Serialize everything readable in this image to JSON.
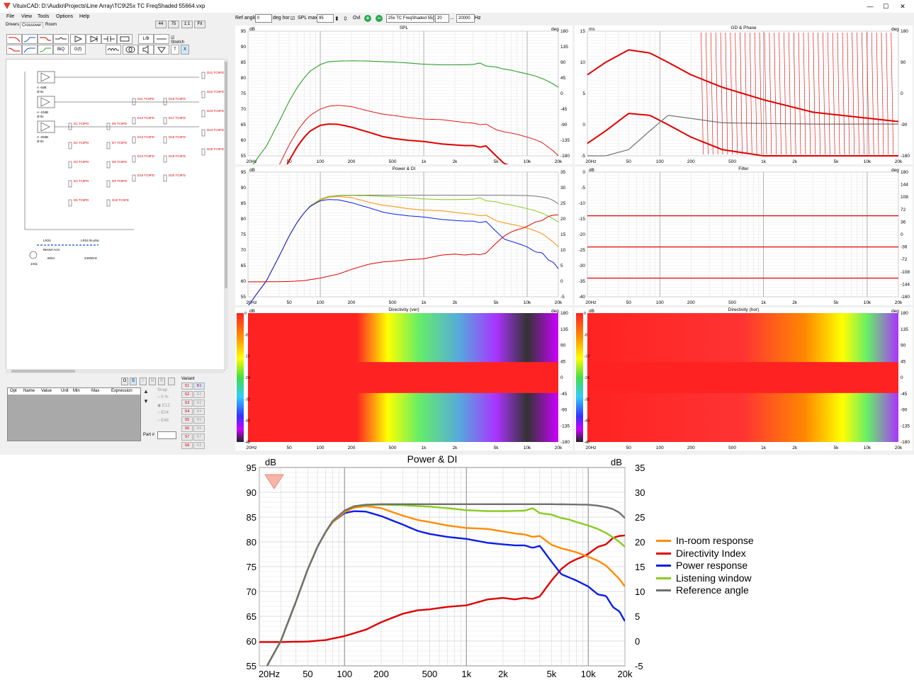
{
  "window": {
    "title": "VituixCAD: D:\\Audio\\Projects\\Line Array\\TC9\\25x TC FreqShaded 55664.vxp",
    "controls": [
      "—",
      "☐",
      "✕"
    ]
  },
  "menu": [
    "File",
    "View",
    "Tools",
    "Options",
    "Help"
  ],
  "tabs": [
    "Drivers",
    "Crossover",
    "Room"
  ],
  "zoom_buttons": [
    "44",
    "75",
    "1:1",
    "Fit"
  ],
  "toolbar": {
    "lb_label": "L/B",
    "biq_label": "BiQ",
    "gf_label": "G(f)",
    "stretch_label": "Stretch",
    "t_label": "T",
    "x_label": "X"
  },
  "schematic": {
    "amps": [
      "A -0dB",
      "A -10dB",
      "A -20dB"
    ],
    "amp_sub": [
      "dl 0s",
      "0m"
    ],
    "drivers_red": [
      "D1 TC9FD",
      "D2 TC9FD",
      "D3 TC9FD",
      "D4 TC9FD",
      "D5 TC9FD",
      "D6 TC9FD",
      "D7 TC9FD",
      "D8 TC9FD",
      "D9 TC9FD",
      "D10 TC9FD",
      "D11 TC9FD",
      "D12 TC9FD",
      "D13 TC9FD",
      "D14 TC9FD",
      "D15 TC9FD",
      "D16 TC9FD",
      "D17 TC9FD",
      "D18 TC9FD",
      "D19 TC9FD",
      "D20 TC9FD",
      "D21 TC9FD",
      "D22 TC9FD",
      "D23 TC9FD",
      "D24 TC9FD",
      "D25 TC9FD"
    ],
    "source": {
      "label_left": "LR24",
      "label_right": "LR24 lin-pha",
      "sub1": "LR",
      "sub2": "PR",
      "bessel": "Bessel Acrs",
      "f_low": "60Hz",
      "f_high": "24000Hz",
      "res": "1mΩ"
    }
  },
  "parts_table": {
    "headers": [
      "Opt",
      "Name",
      "Value",
      "Unit",
      "Min",
      "Max",
      "Expression"
    ],
    "mode_buttons": [
      "O",
      "S",
      "I",
      "M",
      "R"
    ],
    "snap_label": "Snap",
    "snap_options": [
      "5 %",
      "E12",
      "E24",
      "E48"
    ],
    "part_label": "Part #"
  },
  "variant": {
    "label": "Variant",
    "items": [
      "S1",
      "R1",
      "S2",
      "R2",
      "S3",
      "R3",
      "S4",
      "R4",
      "S5",
      "R5",
      "S6",
      "R6",
      "S7",
      "R7",
      "S8",
      "R8"
    ]
  },
  "plot_toolbar": {
    "ref_angle_label": "Ref angle",
    "ref_angle_value": "0",
    "deg_hor_label": "deg hor",
    "spl_max_label": "SPL max",
    "spl_max_value": "95",
    "ovl_label": "Ovl",
    "overlay_name": "25x TC FreqShaded 55(",
    "f_min": "20",
    "f_sep": "...",
    "f_max": "20000",
    "hz_label": "Hz"
  },
  "colors": {
    "in_room": "#ff8c00",
    "di": "#e00000",
    "power": "#0a1ee6",
    "listening": "#88cc22",
    "reference": "#707070",
    "spl_green": "#2e9e2e",
    "red": "#e00000"
  },
  "x_ticks": [
    "20Hz",
    "50",
    "100",
    "200",
    "500",
    "1k",
    "2k",
    "5k",
    "10k",
    "20k"
  ],
  "charts": {
    "spl": {
      "title": "SPL",
      "ylabel_l": "dB",
      "ylabel_r": "deg",
      "yticks_l": [
        "95",
        "90",
        "85",
        "80",
        "75",
        "70",
        "65",
        "60",
        "55"
      ],
      "yticks_r": [
        "180",
        "135",
        "90",
        "45",
        "0",
        "-45",
        "-90",
        "-135",
        "-180"
      ]
    },
    "gd": {
      "title": "GD & Phase",
      "ylabel_l": "ms",
      "ylabel_r": "deg",
      "yticks_l": [
        "15",
        "10",
        "5",
        "0",
        "-5"
      ],
      "yticks_r": [
        "180",
        "90",
        "0",
        "-90",
        "-180"
      ]
    },
    "power_small": {
      "title": "Power & DI",
      "ylabel_l": "dB",
      "yticks_l": [
        "95",
        "90",
        "85",
        "80",
        "75",
        "70",
        "65",
        "60",
        "55"
      ],
      "yticks_r": [
        "35",
        "30",
        "25",
        "20",
        "15",
        "10",
        "5",
        "0",
        "-5"
      ]
    },
    "filter": {
      "title": "Filter",
      "ylabel_l": "dB",
      "ylabel_r": "deg",
      "yticks_l": [
        "0",
        "-5",
        "-10",
        "-15",
        "-20",
        "-25",
        "-30",
        "-35",
        "-40"
      ],
      "yticks_r": [
        "180",
        "144",
        "108",
        "72",
        "36",
        "0",
        "-36",
        "-72",
        "-108",
        "-144",
        "-180"
      ]
    },
    "dir_ver": {
      "title": "Directivity (ver)",
      "ylabel_l": "dB",
      "ylabel_r": "deg",
      "scale": [
        "0",
        "-8",
        "-16",
        "-24",
        "-32",
        "-40",
        "-48"
      ],
      "yticks_r": [
        "180",
        "135",
        "90",
        "45",
        "0",
        "-45",
        "-90",
        "-135",
        "-180"
      ]
    },
    "dir_hor": {
      "title": "Directivity (hor)",
      "ylabel_l": "dB",
      "ylabel_r": "deg",
      "scale": [
        "0",
        "-8",
        "-16",
        "-24",
        "-32",
        "-40",
        "-48"
      ],
      "yticks_r": [
        "180",
        "135",
        "90",
        "45",
        "0",
        "-45",
        "-90",
        "-135",
        "-180"
      ]
    }
  },
  "chart_data": {
    "type": "line",
    "title": "Power & DI",
    "ylabel": "dB",
    "y2label": "dB",
    "x_scale": "log",
    "xlim": [
      20,
      20000
    ],
    "ylim": [
      55,
      95
    ],
    "y2lim": [
      -5,
      35
    ],
    "x_tick_labels": [
      "20Hz",
      "50",
      "100",
      "200",
      "500",
      "1k",
      "2k",
      "5k",
      "10k",
      "20k"
    ],
    "y_tick_labels": [
      "95",
      "90",
      "85",
      "80",
      "75",
      "70",
      "65",
      "60",
      "55"
    ],
    "y2_tick_labels": [
      "35",
      "30",
      "25",
      "20",
      "15",
      "10",
      "5",
      "0",
      "-5"
    ],
    "grid": true,
    "legend": "right",
    "series": [
      {
        "name": "In-room response",
        "axis": "left",
        "color": "#ff8c00",
        "x": [
          20,
          25,
          30,
          40,
          50,
          60,
          70,
          80,
          100,
          120,
          150,
          200,
          300,
          400,
          500,
          700,
          1000,
          1500,
          2000,
          2500,
          3000,
          3500,
          4000,
          5000,
          6000,
          7000,
          8000,
          10000,
          12000,
          14000,
          16000,
          18000,
          20000
        ],
        "y": [
          52,
          56.5,
          60,
          68,
          74.5,
          79,
          82,
          84,
          86,
          86.9,
          87.2,
          86.8,
          85.3,
          84.4,
          84,
          83.3,
          82.8,
          82.6,
          82.1,
          81.7,
          81.5,
          81,
          81.2,
          79.4,
          78.7,
          78.3,
          77.9,
          77,
          76.2,
          75.2,
          73.8,
          72.5,
          71
        ]
      },
      {
        "name": "Directivity Index",
        "axis": "right",
        "color": "#e00000",
        "x": [
          20,
          30,
          50,
          70,
          100,
          150,
          200,
          300,
          400,
          500,
          700,
          1000,
          1500,
          2000,
          2500,
          3000,
          3500,
          4000,
          5000,
          6000,
          7000,
          8000,
          9000,
          10000,
          12000,
          14000,
          16000,
          18000,
          20000
        ],
        "y": [
          -0.2,
          -0.2,
          -0.1,
          0.2,
          1,
          2.3,
          3.8,
          5.5,
          6.2,
          6.4,
          6.9,
          7.2,
          8.4,
          8.7,
          8.4,
          8.7,
          8.5,
          9,
          12.2,
          14.5,
          15.8,
          16.5,
          17,
          17.6,
          19,
          19.5,
          20.8,
          21.2,
          21.3
        ]
      },
      {
        "name": "Power response",
        "axis": "left",
        "color": "#0a1ee6",
        "x": [
          20,
          25,
          30,
          40,
          50,
          60,
          70,
          80,
          100,
          120,
          150,
          200,
          300,
          400,
          500,
          700,
          1000,
          1500,
          2000,
          2500,
          3000,
          3500,
          4000,
          5000,
          6000,
          7000,
          8000,
          10000,
          12000,
          14000,
          16000,
          18000,
          20000
        ],
        "y": [
          52,
          56.5,
          60,
          68,
          74.5,
          79,
          82,
          84,
          85.8,
          86.2,
          86.1,
          85.2,
          83.5,
          82.2,
          81.6,
          81,
          80.6,
          79.8,
          79.5,
          79.3,
          79.3,
          78.8,
          79.2,
          76,
          73.5,
          72.8,
          72.2,
          71,
          69.4,
          69.1,
          66.8,
          66,
          64
        ]
      },
      {
        "name": "Listening window",
        "axis": "left",
        "color": "#88cc22",
        "x": [
          20,
          25,
          30,
          40,
          50,
          60,
          70,
          80,
          100,
          120,
          150,
          200,
          300,
          500,
          700,
          1000,
          1500,
          2000,
          3000,
          3500,
          4000,
          5000,
          6000,
          7000,
          8000,
          10000,
          12000,
          14000,
          16000,
          18000,
          20000
        ],
        "y": [
          52,
          56.5,
          60,
          68,
          74.5,
          79,
          82,
          84.2,
          86.3,
          87.2,
          87.4,
          87.5,
          87.4,
          87.1,
          86.8,
          86.4,
          86.2,
          86.2,
          86.3,
          86.8,
          85.8,
          85.5,
          84.8,
          84.5,
          84,
          83.3,
          82.6,
          81.8,
          80.9,
          80,
          79
        ]
      },
      {
        "name": "Reference angle",
        "axis": "left",
        "color": "#707070",
        "x": [
          20,
          25,
          30,
          40,
          50,
          60,
          70,
          80,
          100,
          120,
          150,
          200,
          300,
          500,
          1000,
          2000,
          5000,
          10000,
          12000,
          14000,
          16000,
          18000,
          20000
        ],
        "y": [
          52,
          56.5,
          60,
          68,
          74.5,
          79,
          82,
          84.2,
          86.3,
          87.2,
          87.5,
          87.6,
          87.6,
          87.6,
          87.6,
          87.6,
          87.6,
          87.5,
          87.3,
          87,
          86.6,
          85.9,
          84.8
        ]
      }
    ]
  }
}
